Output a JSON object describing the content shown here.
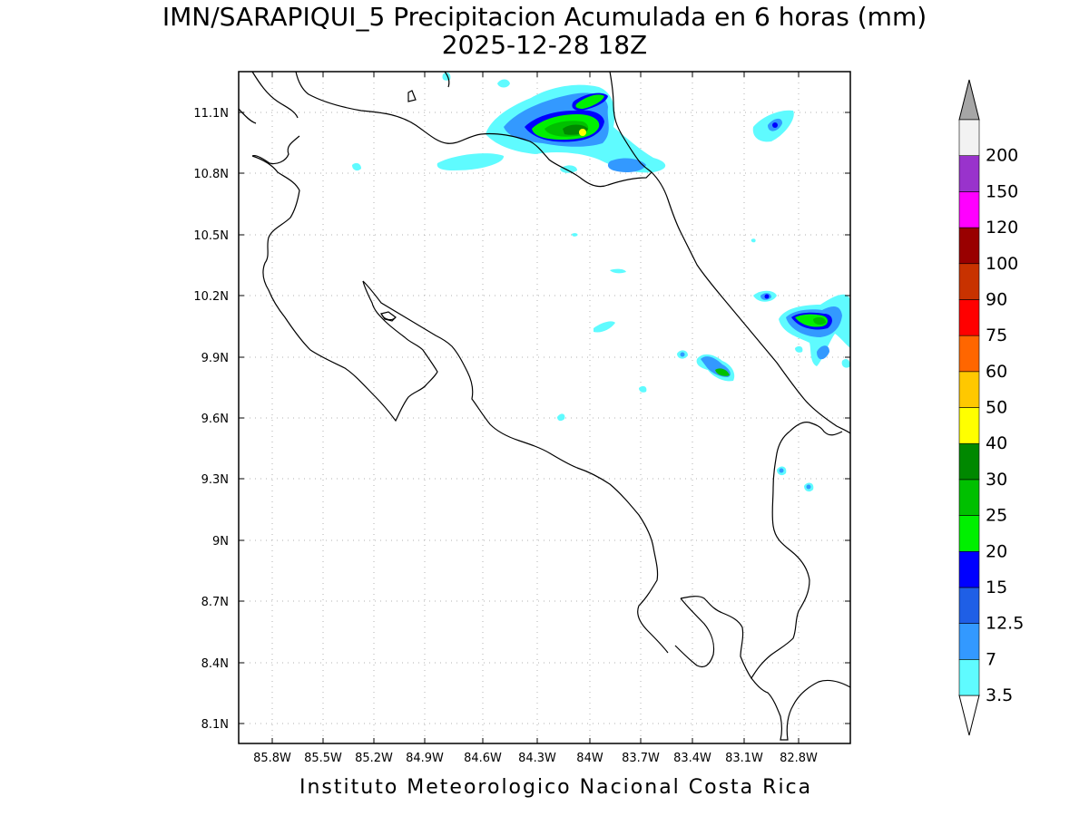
{
  "title": {
    "line1": "IMN/SARAPIQUI_5 Precipitacion Acumulada en 6 horas (mm)",
    "line2": "2025-12-28 18Z"
  },
  "footer": "Instituto Meteorologico Nacional Costa Rica",
  "lon_ticks": [
    "85.8W",
    "85.5W",
    "85.2W",
    "84.9W",
    "84.6W",
    "84.3W",
    "84W",
    "83.7W",
    "83.4W",
    "83.1W",
    "82.8W"
  ],
  "lat_ticks": [
    "11.1N",
    "10.8N",
    "10.5N",
    "10.2N",
    "9.9N",
    "9.6N",
    "9.3N",
    "9N",
    "8.7N",
    "8.4N",
    "8.1N"
  ],
  "legend": {
    "labels": [
      "3.5",
      "7",
      "12.5",
      "15",
      "20",
      "25",
      "30",
      "40",
      "50",
      "60",
      "75",
      "90",
      "100",
      "120",
      "150",
      "200"
    ],
    "colors": [
      "#5ffbff",
      "#3399ff",
      "#1f5fe6",
      "#0000ff",
      "#00f000",
      "#00c000",
      "#008800",
      "#ffff00",
      "#ffc800",
      "#ff6600",
      "#ff0000",
      "#c83200",
      "#990000",
      "#ff00ff",
      "#9933cc",
      "#f2f2f2"
    ],
    "over_color": "#a6a6a6"
  },
  "map": {
    "grid": true,
    "coastline_color": "#000000"
  }
}
